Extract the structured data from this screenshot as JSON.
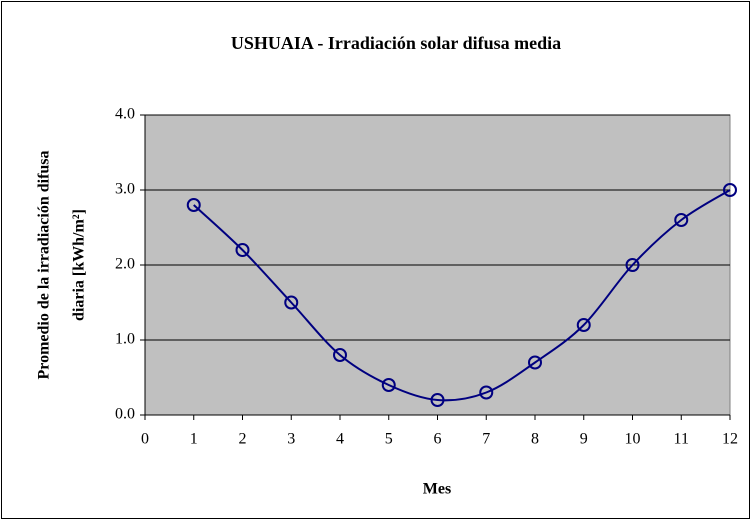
{
  "chart_data": {
    "type": "scatter",
    "title": "USHUAIA - Irradiación solar difusa media",
    "x_label": "Mes",
    "y_label": [
      "Promedio de la irradiación difusa",
      "diaria [kWh/m²]"
    ],
    "x": [
      1,
      2,
      3,
      4,
      5,
      6,
      7,
      8,
      9,
      10,
      11,
      12
    ],
    "values": [
      2.8,
      2.2,
      1.5,
      0.8,
      0.4,
      0.2,
      0.3,
      0.7,
      1.2,
      2.0,
      2.6,
      3.0
    ],
    "color": "#000080",
    "smooth": true,
    "grid": true,
    "plot_background": "#c0c0c0",
    "xlim": [
      0,
      12
    ],
    "xticks": [
      0,
      1,
      2,
      3,
      4,
      5,
      6,
      7,
      8,
      9,
      10,
      11,
      12
    ],
    "ylim": [
      0,
      4
    ],
    "yticks": [
      {
        "value": 0,
        "label": "0.0"
      },
      {
        "value": 1,
        "label": "1.0"
      },
      {
        "value": 2,
        "label": "2.0"
      },
      {
        "value": 3,
        "label": "3.0"
      },
      {
        "value": 4,
        "label": "4.0"
      }
    ]
  }
}
